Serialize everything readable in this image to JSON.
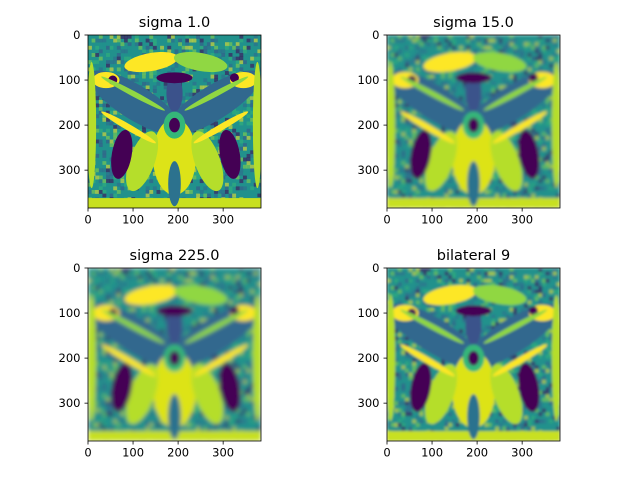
{
  "chart_data": [
    {
      "type": "heatmap",
      "title": "sigma 1.0",
      "xlabel": "",
      "ylabel": "",
      "xlim": [
        0,
        384
      ],
      "ylim": [
        384,
        0
      ],
      "xticks": [
        0,
        100,
        200,
        300
      ],
      "yticks": [
        0,
        100,
        200,
        300
      ],
      "colormap": "viridis",
      "blur": 0.0,
      "grid": false
    },
    {
      "type": "heatmap",
      "title": "sigma 15.0",
      "xlabel": "",
      "ylabel": "",
      "xlim": [
        0,
        384
      ],
      "ylim": [
        384,
        0
      ],
      "xticks": [
        0,
        100,
        200,
        300
      ],
      "yticks": [
        0,
        100,
        200,
        300
      ],
      "colormap": "viridis",
      "blur": 1.6,
      "grid": false
    },
    {
      "type": "heatmap",
      "title": "sigma 225.0",
      "xlabel": "",
      "ylabel": "",
      "xlim": [
        0,
        384
      ],
      "ylim": [
        384,
        0
      ],
      "xticks": [
        0,
        100,
        200,
        300
      ],
      "yticks": [
        0,
        100,
        200,
        300
      ],
      "colormap": "viridis",
      "blur": 2.2,
      "grid": false
    },
    {
      "type": "heatmap",
      "title": "bilateral 9",
      "xlabel": "",
      "ylabel": "",
      "xlim": [
        0,
        384
      ],
      "ylim": [
        384,
        0
      ],
      "xticks": [
        0,
        100,
        200,
        300
      ],
      "yticks": [
        0,
        100,
        200,
        300
      ],
      "colormap": "viridis",
      "blur": 1.3,
      "grid": false
    }
  ],
  "colors": {
    "viridis_dark": "#440154",
    "viridis_deep_blue": "#31688e",
    "viridis_teal": "#21918c",
    "viridis_green": "#35b779",
    "viridis_yellow": "#fde725"
  }
}
